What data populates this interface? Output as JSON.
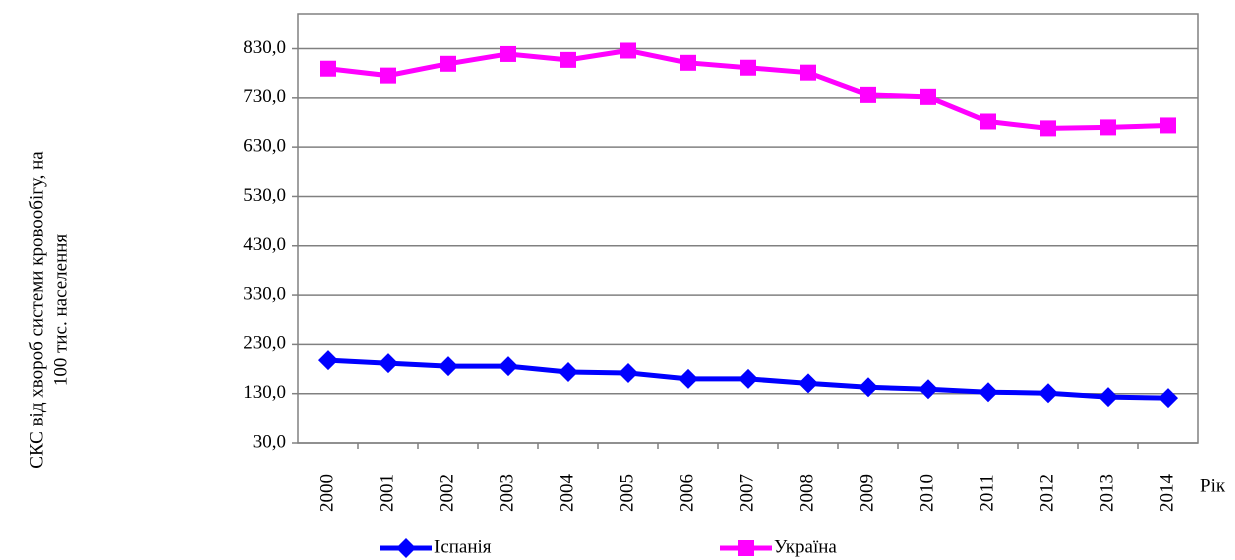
{
  "chart_data": {
    "type": "line",
    "ylabel": [
      "СКС від хвороб системи кровообігу, на",
      "100 тис. населення"
    ],
    "xlabel": "Рік",
    "categories": [
      "2000",
      "2001",
      "2002",
      "2003",
      "2004",
      "2005",
      "2006",
      "2007",
      "2008",
      "2009",
      "2010",
      "2011",
      "2012",
      "2013",
      "2014"
    ],
    "series": [
      {
        "name": "Іспанія",
        "color": "#0000ff",
        "marker": "diamond",
        "values": [
          198,
          192,
          186,
          186,
          174,
          172,
          160,
          160,
          151,
          143,
          139,
          133,
          131,
          123,
          121
        ]
      },
      {
        "name": "Україна",
        "color": "#ff00ff",
        "marker": "square",
        "values": [
          789,
          775,
          799,
          819,
          807,
          826,
          801,
          791,
          781,
          736,
          732,
          682,
          668,
          670,
          674
        ]
      }
    ],
    "ylim": [
      30,
      900
    ],
    "yticks": [
      {
        "value": 30,
        "label": "30,0"
      },
      {
        "value": 130,
        "label": "130,0"
      },
      {
        "value": 230,
        "label": "230,0"
      },
      {
        "value": 330,
        "label": "330,0"
      },
      {
        "value": 430,
        "label": "430,0"
      },
      {
        "value": 530,
        "label": "530,0"
      },
      {
        "value": 630,
        "label": "630,0"
      },
      {
        "value": 730,
        "label": "730,0"
      },
      {
        "value": 830,
        "label": "830,0"
      }
    ],
    "grid": true,
    "legend": "bottom"
  }
}
